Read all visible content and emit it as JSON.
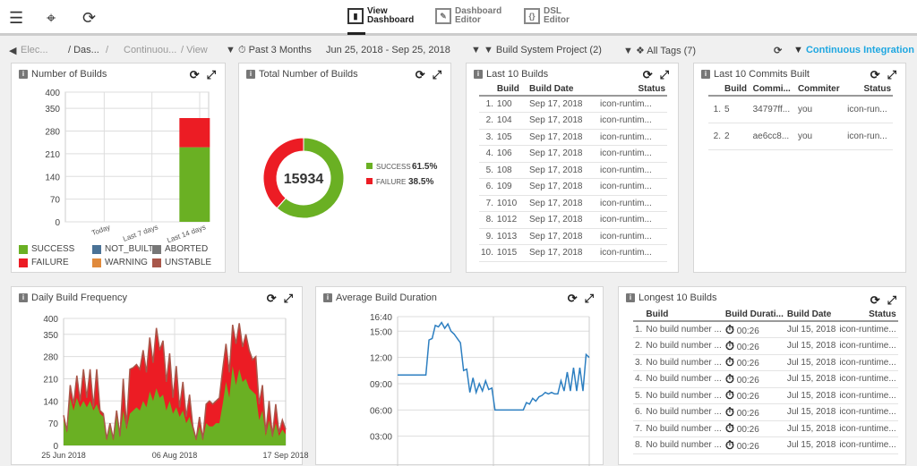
{
  "topbar": {
    "modes": [
      {
        "line1": "View",
        "line2": "Dashboard"
      },
      {
        "line1": "Dashboard",
        "line2": "Editor"
      },
      {
        "line1": "DSL",
        "line2": "Editor"
      }
    ]
  },
  "filters": {
    "breadcrumb": [
      "Elec...",
      "/ Das...",
      "/",
      "Continuou...",
      "/ View"
    ],
    "time_range": "Past 3 Months",
    "date_range": "Jun 25, 2018 - Sep 25, 2018",
    "project": "Build System Project (2)",
    "tags": "All Tags (7)",
    "dashboard": "Continuous Integration"
  },
  "colors": {
    "success": "#6ab023",
    "failure": "#ec1c24",
    "not_built": "#4a7296",
    "aborted": "#777777",
    "warning": "#e08a3c",
    "unstable": "#a8574a",
    "line": "#2d7fc1",
    "link": "#1ea7e1"
  },
  "panels": {
    "number_of_builds": {
      "title": "Number of Builds"
    },
    "total_builds": {
      "title": "Total Number of Builds"
    },
    "last_builds": {
      "title": "Last 10 Builds",
      "headers": [
        "Build",
        "Build Date",
        "Status"
      ],
      "rows": [
        [
          "1.",
          "100",
          "Sep 17, 2018",
          "icon-runtim..."
        ],
        [
          "2.",
          "104",
          "Sep 17, 2018",
          "icon-runtim..."
        ],
        [
          "3.",
          "105",
          "Sep 17, 2018",
          "icon-runtim..."
        ],
        [
          "4.",
          "106",
          "Sep 17, 2018",
          "icon-runtim..."
        ],
        [
          "5.",
          "108",
          "Sep 17, 2018",
          "icon-runtim..."
        ],
        [
          "6.",
          "109",
          "Sep 17, 2018",
          "icon-runtim..."
        ],
        [
          "7.",
          "1010",
          "Sep 17, 2018",
          "icon-runtim..."
        ],
        [
          "8.",
          "1012",
          "Sep 17, 2018",
          "icon-runtim..."
        ],
        [
          "9.",
          "1013",
          "Sep 17, 2018",
          "icon-runtim..."
        ],
        [
          "10.",
          "1015",
          "Sep 17, 2018",
          "icon-runtim..."
        ]
      ]
    },
    "last_commits": {
      "title": "Last 10 Commits Built",
      "headers": [
        "Build",
        "Commi...",
        "Commiter",
        "Status"
      ],
      "rows": [
        [
          "1.",
          "5",
          "34797ff...",
          "you",
          "icon-run..."
        ],
        [
          "2.",
          "2",
          "ae6cc8...",
          "you",
          "icon-run..."
        ]
      ]
    },
    "daily_frequency": {
      "title": "Daily Build Frequency"
    },
    "avg_duration": {
      "title": "Average Build Duration"
    },
    "longest_builds": {
      "title": "Longest 10 Builds",
      "headers": [
        "Build",
        "Build Durati...",
        "Build Date",
        "Status"
      ],
      "rows": [
        [
          "1.",
          "No build number ...",
          "00:26",
          "Jul 15, 2018",
          "icon-runtime..."
        ],
        [
          "2.",
          "No build number ...",
          "00:26",
          "Jul 15, 2018",
          "icon-runtime..."
        ],
        [
          "3.",
          "No build number ...",
          "00:26",
          "Jul 15, 2018",
          "icon-runtime..."
        ],
        [
          "4.",
          "No build number ...",
          "00:26",
          "Jul 15, 2018",
          "icon-runtime..."
        ],
        [
          "5.",
          "No build number ...",
          "00:26",
          "Jul 15, 2018",
          "icon-runtime..."
        ],
        [
          "6.",
          "No build number ...",
          "00:26",
          "Jul 15, 2018",
          "icon-runtime..."
        ],
        [
          "7.",
          "No build number ...",
          "00:26",
          "Jul 15, 2018",
          "icon-runtime..."
        ],
        [
          "8.",
          "No build number ...",
          "00:26",
          "Jul 15, 2018",
          "icon-runtime..."
        ]
      ]
    }
  },
  "chart_data": [
    {
      "type": "bar",
      "stacked": true,
      "categories": [
        "Today",
        "Last 7 days",
        "Last 14 days"
      ],
      "series": [
        {
          "name": "SUCCESS",
          "values": [
            0,
            0,
            230
          ]
        },
        {
          "name": "FAILURE",
          "values": [
            0,
            0,
            90
          ]
        }
      ],
      "legend": [
        "SUCCESS",
        "NOT_BUILT",
        "ABORTED",
        "FAILURE",
        "WARNING",
        "UNSTABLE"
      ],
      "yticks": [
        0,
        70,
        140,
        210,
        280,
        350,
        400
      ],
      "ylim": [
        0,
        400
      ],
      "grid": true,
      "legend_placement": "bottom"
    },
    {
      "type": "pie",
      "donut": true,
      "center_label": "15934",
      "slices": [
        {
          "name": "SUCCESS",
          "value": 61.5,
          "label": "61.5%"
        },
        {
          "name": "FAILURE",
          "value": 38.5,
          "label": "38.5%"
        }
      ],
      "legend_placement": "right"
    },
    {
      "type": "area",
      "stacked": true,
      "xticks": [
        "25 Jun 2018",
        "06 Aug 2018",
        "17 Sep 2018"
      ],
      "yticks": [
        0,
        70,
        140,
        210,
        280,
        350,
        400
      ],
      "ylim": [
        0,
        400
      ],
      "grid": true,
      "total": [
        95,
        45,
        190,
        130,
        220,
        140,
        240,
        150,
        240,
        120,
        240,
        110,
        100,
        20,
        70,
        20,
        110,
        30,
        210,
        60,
        240,
        245,
        255,
        240,
        300,
        230,
        340,
        260,
        370,
        300,
        330,
        200,
        290,
        150,
        250,
        120,
        200,
        90,
        160,
        60,
        20,
        90,
        20,
        130,
        140,
        130,
        140,
        150,
        240,
        320,
        230,
        380,
        320,
        385,
        310,
        350,
        300,
        270,
        280,
        130,
        190,
        40,
        140,
        30,
        130,
        40,
        80,
        50
      ],
      "success": [
        80,
        40,
        150,
        110,
        150,
        120,
        140,
        120,
        140,
        110,
        130,
        100,
        90,
        15,
        60,
        15,
        90,
        25,
        110,
        50,
        100,
        110,
        120,
        110,
        140,
        120,
        170,
        140,
        180,
        150,
        160,
        110,
        140,
        100,
        120,
        90,
        110,
        70,
        90,
        50,
        15,
        60,
        15,
        70,
        60,
        60,
        70,
        70,
        130,
        200,
        150,
        250,
        190,
        240,
        200,
        210,
        180,
        170,
        160,
        80,
        110,
        30,
        80,
        25,
        70,
        30,
        50,
        35
      ]
    },
    {
      "type": "line",
      "yticks": [
        "03:00",
        "06:00",
        "09:00",
        "12:00",
        "15:00",
        "16:40"
      ],
      "grid": true,
      "values": [
        "10:00",
        "10:00",
        "10:00",
        "10:00",
        "10:00",
        "10:00",
        "10:00",
        "10:00",
        "10:00",
        "10:00",
        "14:00",
        "14:10",
        "15:40",
        "15:30",
        "16:00",
        "15:20",
        "15:50",
        "15:00",
        "14:40",
        "14:10",
        "13:40",
        "10:30",
        "10:40",
        "8:00",
        "9:40",
        "8:00",
        "9:00",
        "8:10",
        "9:20",
        "8:20",
        "8:30",
        "6:00",
        "6:00",
        "6:00",
        "6:00",
        "6:00",
        "6:00",
        "6:00",
        "6:00",
        "6:00",
        "6:00",
        "6:50",
        "6:40",
        "7:20",
        "7:00",
        "7:30",
        "7:40",
        "8:00",
        "7:50",
        "8:00",
        "7:50",
        "7:50",
        "9:20",
        "8:10",
        "10:20",
        "8:10",
        "10:50",
        "8:10",
        "10:50",
        "8:10",
        "12:20",
        "12:00"
      ]
    }
  ]
}
